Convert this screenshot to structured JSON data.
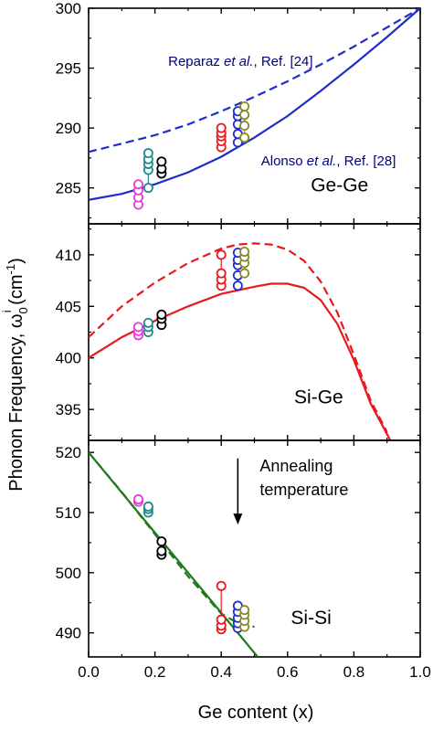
{
  "chart_data": {
    "type": "scatter",
    "xlabel": "Ge content (x)",
    "ylabel": {
      "main": "Phonon Frequency, ω",
      "sub": "0",
      "sup": "i",
      "unit_open": " (cm",
      "unit_sup": "-1",
      "unit_close": ")"
    },
    "xlim": [
      0.0,
      1.0
    ],
    "xticks": [
      "0.0",
      "0.2",
      "0.4",
      "0.6",
      "0.8",
      "1.0"
    ],
    "colors": {
      "blue": "#1f2ec8",
      "red": "#e8191c",
      "green": "#1f7a1f",
      "magenta": "#e83ad6",
      "teal": "#1f8a8a",
      "black": "#000000",
      "olive": "#8a8a1f",
      "navy": "#000080"
    },
    "panels": [
      {
        "id": "ge-ge",
        "label": "Ge-Ge",
        "ylim": [
          282,
          300
        ],
        "yticks": [
          285,
          290,
          295,
          300
        ],
        "annotations": [
          {
            "text_a": "Reparaz ",
            "text_b": "et al.",
            "text_c": ", Ref. [24]",
            "x": 0.24,
            "y": 295.2
          },
          {
            "text_a": "Alonso ",
            "text_b": "et al.",
            "text_c": ", Ref. [28]",
            "x": 0.52,
            "y": 286.9
          }
        ],
        "curves": [
          {
            "style": "solid",
            "color": "blue",
            "x": [
              0,
              0.1,
              0.2,
              0.3,
              0.4,
              0.5,
              0.6,
              0.7,
              0.8,
              0.9,
              1.0
            ],
            "y": [
              284.0,
              284.5,
              285.3,
              286.3,
              287.6,
              289.2,
              291.0,
              293.1,
              295.3,
              297.6,
              300.0
            ]
          },
          {
            "style": "dashed",
            "color": "blue",
            "x": [
              0,
              0.1,
              0.2,
              0.3,
              0.4,
              0.5,
              0.6,
              0.7,
              0.8,
              0.9,
              1.0
            ],
            "y": [
              288.0,
              288.7,
              289.4,
              290.3,
              291.4,
              292.6,
              293.9,
              295.3,
              296.8,
              298.4,
              300.0
            ]
          }
        ],
        "points": [
          {
            "color": "magenta",
            "x": 0.15,
            "y": [
              283.6,
              284.2,
              284.8,
              285.3
            ]
          },
          {
            "color": "teal",
            "x": 0.18,
            "y": [
              285.0,
              286.5,
              287.0,
              287.4,
              287.9
            ]
          },
          {
            "color": "black",
            "x": 0.22,
            "y": [
              286.2,
              286.6,
              287.2
            ]
          },
          {
            "color": "red",
            "x": 0.4,
            "y": [
              288.4,
              288.9,
              289.3,
              289.6,
              290.0
            ]
          },
          {
            "color": "blue",
            "x": 0.45,
            "y": [
              288.8,
              289.5,
              290.3,
              291.0,
              291.4
            ]
          },
          {
            "color": "olive",
            "x": 0.47,
            "y": [
              289.2,
              290.2,
              291.1,
              291.8
            ]
          }
        ]
      },
      {
        "id": "si-ge",
        "label": "Si-Ge",
        "ylim": [
          392,
          413
        ],
        "yticks": [
          395,
          400,
          405,
          410
        ],
        "annotations": [],
        "curves": [
          {
            "style": "solid",
            "color": "red",
            "x": [
              0,
              0.1,
              0.2,
              0.3,
              0.4,
              0.5,
              0.55,
              0.6,
              0.65,
              0.7,
              0.75,
              0.8,
              0.85,
              0.9,
              0.91
            ],
            "y": [
              400.0,
              402.0,
              403.6,
              405.0,
              406.2,
              406.9,
              407.2,
              407.2,
              406.8,
              405.6,
              403.3,
              399.8,
              395.6,
              392.6,
              392.0
            ]
          },
          {
            "style": "dashed",
            "color": "red",
            "x": [
              0,
              0.1,
              0.2,
              0.3,
              0.4,
              0.45,
              0.5,
              0.55,
              0.6,
              0.65,
              0.7,
              0.75,
              0.8,
              0.85,
              0.9
            ],
            "y": [
              402.0,
              405.0,
              407.3,
              409.2,
              410.6,
              411.0,
              411.1,
              411.0,
              410.5,
              409.4,
              407.4,
              404.4,
              400.3,
              395.9,
              392.8
            ]
          }
        ],
        "points": [
          {
            "color": "magenta",
            "x": 0.15,
            "y": [
              402.2,
              402.6,
              403.0
            ]
          },
          {
            "color": "teal",
            "x": 0.18,
            "y": [
              402.5,
              403.0,
              403.4
            ]
          },
          {
            "color": "black",
            "x": 0.22,
            "y": [
              403.2,
              403.8,
              404.2
            ]
          },
          {
            "color": "red",
            "x": 0.4,
            "y": [
              407.0,
              407.6,
              408.2,
              410.0
            ]
          },
          {
            "color": "blue",
            "x": 0.45,
            "y": [
              407.0,
              408.0,
              409.0,
              409.5,
              410.2
            ]
          },
          {
            "color": "olive",
            "x": 0.47,
            "y": [
              408.2,
              409.2,
              409.8,
              410.3
            ]
          }
        ]
      },
      {
        "id": "si-si",
        "label": "Si-Si",
        "ylim": [
          486,
          522
        ],
        "yticks": [
          490,
          500,
          510,
          520
        ],
        "annotations": [],
        "arrow": {
          "label_line1": "Annealing",
          "label_line2": "temperature",
          "x": 0.45,
          "y_from": 519,
          "y_to": 508
        },
        "curves": [
          {
            "style": "solid",
            "color": "green",
            "x": [
              0,
              0.51
            ],
            "y": [
              520.0,
              486.0
            ]
          },
          {
            "style": "dashed",
            "color": "green",
            "x": [
              0,
              0.1,
              0.2,
              0.3,
              0.4,
              0.45,
              0.5
            ],
            "y": [
              520.0,
              513.4,
              506.4,
              499.4,
              493.2,
              491.6,
              491.0
            ]
          }
        ],
        "points": [
          {
            "color": "magenta",
            "x": 0.15,
            "y": [
              511.8,
              512.2
            ]
          },
          {
            "color": "teal",
            "x": 0.18,
            "y": [
              510.0,
              510.6,
              511.0
            ]
          },
          {
            "color": "black",
            "x": 0.22,
            "y": [
              503.0,
              503.6,
              505.2
            ]
          },
          {
            "color": "red",
            "x": 0.4,
            "y": [
              490.6,
              491.2,
              492.2,
              497.8
            ]
          },
          {
            "color": "blue",
            "x": 0.45,
            "y": [
              490.8,
              491.6,
              492.5,
              493.5,
              494.5
            ]
          },
          {
            "color": "olive",
            "x": 0.47,
            "y": [
              491.0,
              492.0,
              493.0,
              493.8
            ]
          }
        ]
      }
    ]
  }
}
